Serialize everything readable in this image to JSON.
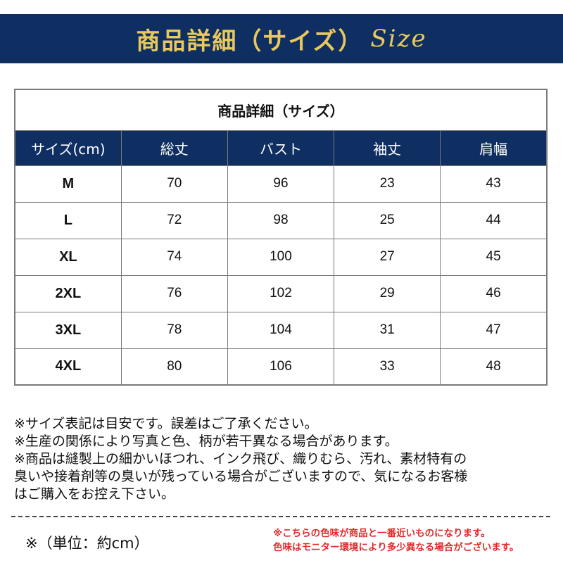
{
  "banner": {
    "title": "商品詳細（サイズ）",
    "size_word": "Size"
  },
  "table": {
    "caption": "商品詳細（サイズ）",
    "headers": [
      "サイズ(cm)",
      "総丈",
      "バスト",
      "袖丈",
      "肩幅"
    ],
    "rows": [
      [
        "M",
        "70",
        "96",
        "23",
        "43"
      ],
      [
        "L",
        "72",
        "98",
        "25",
        "44"
      ],
      [
        "XL",
        "74",
        "100",
        "27",
        "45"
      ],
      [
        "2XL",
        "76",
        "102",
        "29",
        "46"
      ],
      [
        "3XL",
        "78",
        "104",
        "31",
        "47"
      ],
      [
        "4XL",
        "80",
        "106",
        "33",
        "48"
      ]
    ]
  },
  "notes": [
    "※サイズ表記は目安です。誤差はご了承ください。",
    "※生産の関係により写真と色、柄が若干異なる場合があります。",
    "※商品は縫製上の細かいほつれ、インク飛び、織りむら、汚れ、素材特有の",
    "臭いや接着剤等の臭いが残っている場合がございますので、気になるお客様",
    "はご購入をお控え下さい。"
  ],
  "unit_note": "※（単位：約cm）",
  "color_note": [
    "※こちらの色味が商品と一番近いものになります。",
    "色味はモニター環境により多少異なる場合がございます。"
  ],
  "colors": {
    "banner_bg": "#0f2f62",
    "banner_text": "#e9c95c",
    "header_bg": "#0f2f62",
    "warning_text": "#e02a2a"
  }
}
